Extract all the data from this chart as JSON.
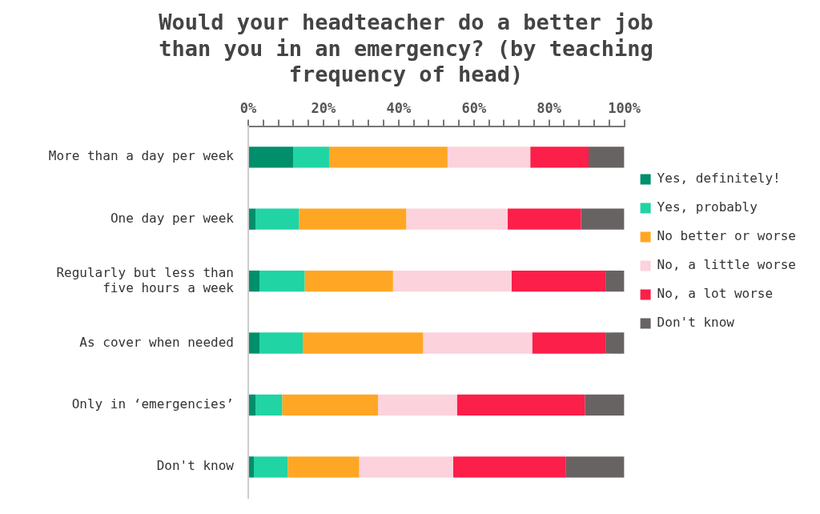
{
  "chart_data": {
    "type": "bar",
    "orientation": "horizontal",
    "stacked": true,
    "title": "Would your headteacher do a better job than you in an emergency? (by teaching frequency of head)",
    "categories": [
      "More than a day per week",
      "One day per week",
      "Regularly but less than five hours a week",
      "As cover when needed",
      "Only in ‘emergencies’",
      "Don't know"
    ],
    "series": [
      {
        "name": "Yes, definitely!",
        "color": "#008f6b",
        "values": [
          12,
          2,
          3,
          3,
          2,
          1.5
        ]
      },
      {
        "name": "Yes, probably",
        "color": "#20d4a4",
        "values": [
          9.5,
          11.5,
          12,
          11.5,
          7,
          9
        ]
      },
      {
        "name": "No better or worse",
        "color": "#ffa724",
        "values": [
          31.5,
          28.5,
          23.5,
          32,
          25.5,
          19
        ]
      },
      {
        "name": "No, a little worse",
        "color": "#fcd2dc",
        "values": [
          22,
          27,
          31.5,
          29,
          21,
          25
        ]
      },
      {
        "name": "No, a lot worse",
        "color": "#fb1f4a",
        "values": [
          15.5,
          19.5,
          25,
          19.5,
          34,
          30
        ]
      },
      {
        "name": "Don't know",
        "color": "#676362",
        "values": [
          9.5,
          11.5,
          5,
          5,
          10.5,
          15.5
        ]
      }
    ],
    "xlim": [
      0,
      100
    ],
    "xticks": [
      {
        "value": 0,
        "label": "0%"
      },
      {
        "value": 4,
        "label": null
      },
      {
        "value": 8,
        "label": null
      },
      {
        "value": 12,
        "label": null
      },
      {
        "value": 16,
        "label": null
      },
      {
        "value": 20,
        "label": "20%"
      },
      {
        "value": 24,
        "label": null
      },
      {
        "value": 28,
        "label": null
      },
      {
        "value": 32,
        "label": null
      },
      {
        "value": 36,
        "label": null
      },
      {
        "value": 40,
        "label": "40%"
      },
      {
        "value": 44,
        "label": null
      },
      {
        "value": 48,
        "label": null
      },
      {
        "value": 52,
        "label": null
      },
      {
        "value": 56,
        "label": null
      },
      {
        "value": 60,
        "label": "60%"
      },
      {
        "value": 64,
        "label": null
      },
      {
        "value": 68,
        "label": null
      },
      {
        "value": 72,
        "label": null
      },
      {
        "value": 76,
        "label": null
      },
      {
        "value": 80,
        "label": "80%"
      },
      {
        "value": 84,
        "label": null
      },
      {
        "value": 88,
        "label": null
      },
      {
        "value": 92,
        "label": null
      },
      {
        "value": 96,
        "label": null
      },
      {
        "value": 100,
        "label": "100%"
      }
    ],
    "grid": false,
    "legend": "right"
  }
}
